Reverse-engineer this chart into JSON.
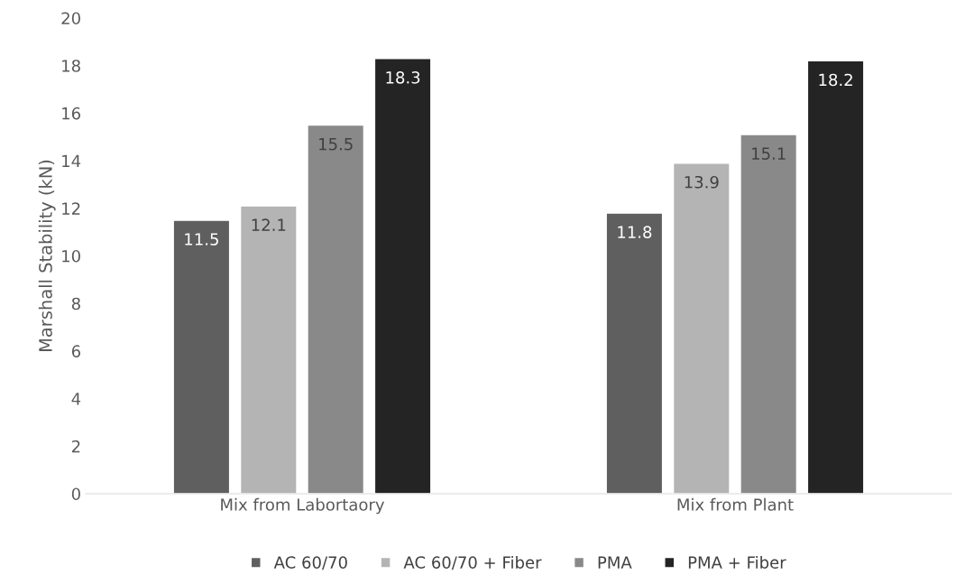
{
  "chart_data": {
    "type": "bar",
    "ylabel": "Marshall Stability (kN)",
    "categories": [
      "Mix from Labortaory",
      "Mix from Plant"
    ],
    "series": [
      {
        "name": "AC 60/70",
        "color": "#5f5f5f",
        "values": [
          11.5,
          11.8
        ]
      },
      {
        "name": "AC 60/70 + Fiber",
        "color": "#b4b4b4",
        "values": [
          12.1,
          13.9
        ]
      },
      {
        "name": "PMA",
        "color": "#898989",
        "values": [
          15.5,
          15.1
        ]
      },
      {
        "name": "PMA + Fiber",
        "color": "#242424",
        "values": [
          18.3,
          18.2
        ]
      }
    ],
    "ylim": [
      0,
      20
    ],
    "yticks": [
      0,
      2,
      4,
      6,
      8,
      10,
      12,
      14,
      16,
      18,
      20
    ],
    "data_labels": true,
    "legend": "bottom",
    "grid": false
  }
}
